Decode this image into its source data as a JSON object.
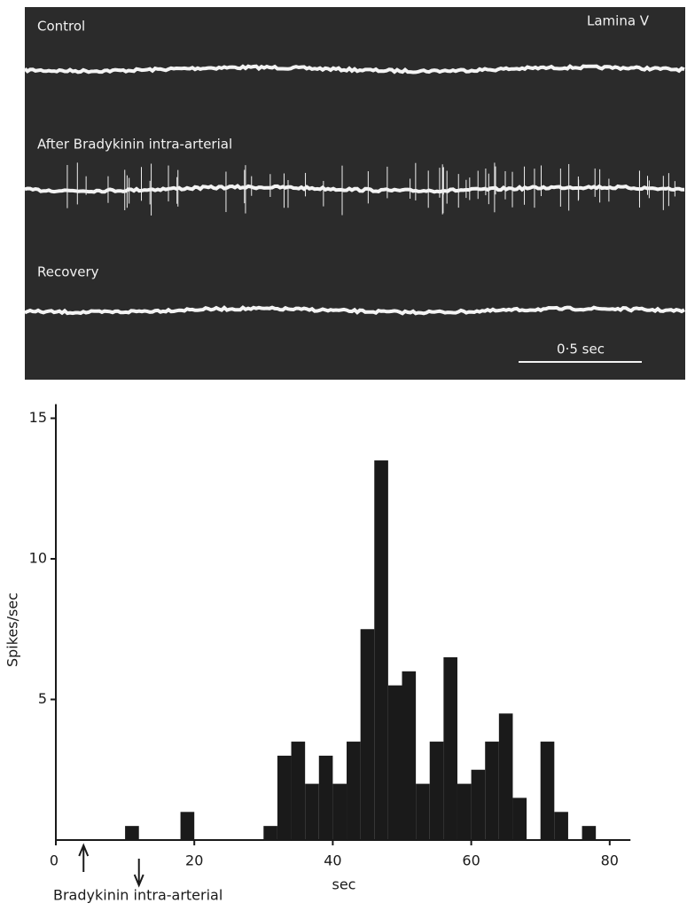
{
  "trace_panel": {
    "labels": [
      "Control",
      "Lamina V",
      "After Bradykinin intra-arterial",
      "Recovery"
    ],
    "scale_bar": "0·5 sec"
  },
  "chart_data": {
    "type": "histogram",
    "y_label": "Spikes/sec",
    "x_label": "sec",
    "bins": [
      10,
      12,
      14,
      16,
      18,
      20,
      22,
      24,
      26,
      28,
      30,
      32,
      34,
      36,
      38,
      40,
      42,
      44,
      46,
      48,
      50,
      52,
      54,
      56,
      58,
      60,
      62,
      64,
      66,
      68,
      70,
      72,
      74,
      76,
      78
    ],
    "values": [
      0.5,
      0,
      0,
      0,
      1,
      0,
      0,
      0,
      0,
      0,
      0.5,
      3,
      3.5,
      2,
      3,
      2,
      3.5,
      7.5,
      13.5,
      5.5,
      6,
      2,
      3.5,
      6.5,
      2,
      2.5,
      3.5,
      4.5,
      1.5,
      0,
      3.5,
      1,
      0,
      0.5
    ],
    "color": "#1a1a1a",
    "xlim": [
      0,
      83
    ],
    "ylim": [
      0,
      15.5
    ],
    "xticks": [
      0,
      20,
      40,
      60,
      80
    ],
    "yticks": [
      5,
      10,
      15
    ],
    "injection": {
      "label": "Bradykinin intra-arterial",
      "start": 4,
      "end": 12
    }
  }
}
